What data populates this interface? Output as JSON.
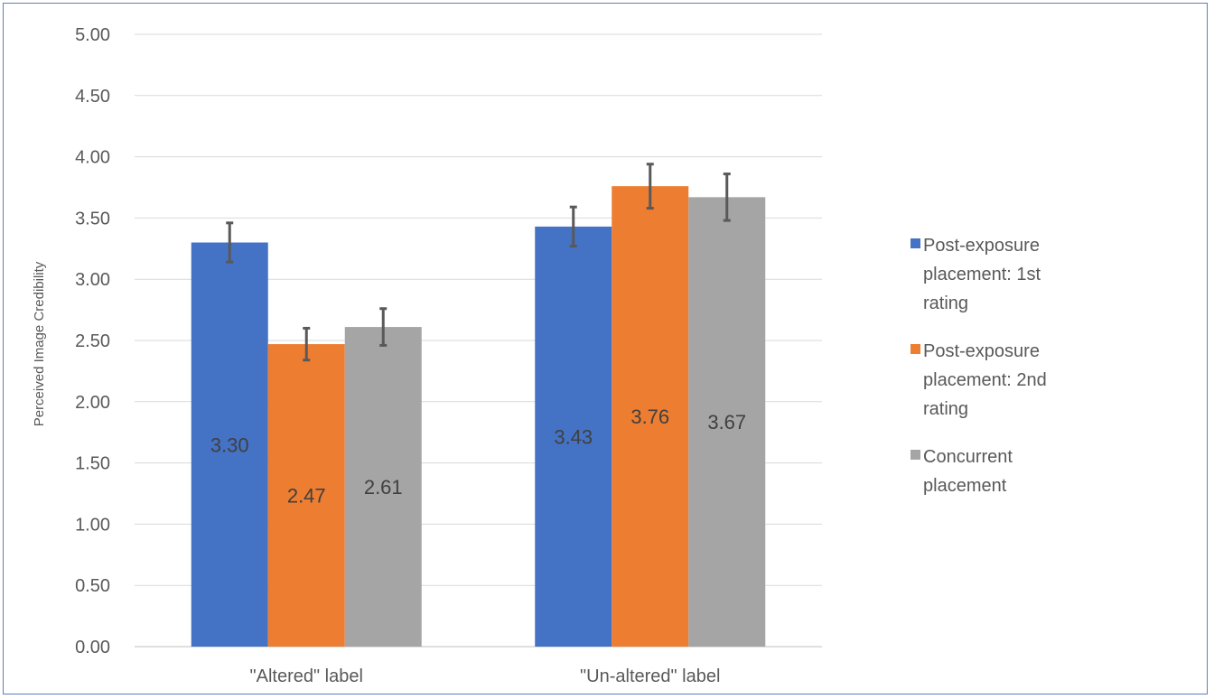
{
  "chart_data": {
    "type": "bar",
    "title": "",
    "xlabel": "",
    "ylabel": "Perceived Image Credibility",
    "ylim": [
      0,
      5
    ],
    "yticks": [
      "0.00",
      "0.50",
      "1.00",
      "1.50",
      "2.00",
      "2.50",
      "3.00",
      "3.50",
      "4.00",
      "4.50",
      "5.00"
    ],
    "grid": true,
    "legend_position": "right",
    "categories": [
      "\"Altered\" label",
      "\"Un-altered\" label"
    ],
    "series": [
      {
        "name": "Post-exposure placement: 1st rating",
        "legend_lines": [
          "Post-exposure",
          "placement: 1st",
          "rating"
        ],
        "color": "#4472c4",
        "values": [
          3.3,
          3.43
        ],
        "labels": [
          "3.30",
          "3.43"
        ],
        "error": [
          0.16,
          0.16
        ]
      },
      {
        "name": "Post-exposure placement: 2nd rating",
        "legend_lines": [
          "Post-exposure",
          "placement: 2nd",
          "rating"
        ],
        "color": "#ed7d31",
        "values": [
          2.47,
          3.76
        ],
        "labels": [
          "2.47",
          "3.76"
        ],
        "error": [
          0.13,
          0.18
        ]
      },
      {
        "name": "Concurrent placement",
        "legend_lines": [
          "Concurrent",
          "placement"
        ],
        "color": "#a5a5a5",
        "values": [
          2.61,
          3.67
        ],
        "labels": [
          "2.61",
          "3.67"
        ],
        "error": [
          0.15,
          0.19
        ]
      }
    ]
  }
}
